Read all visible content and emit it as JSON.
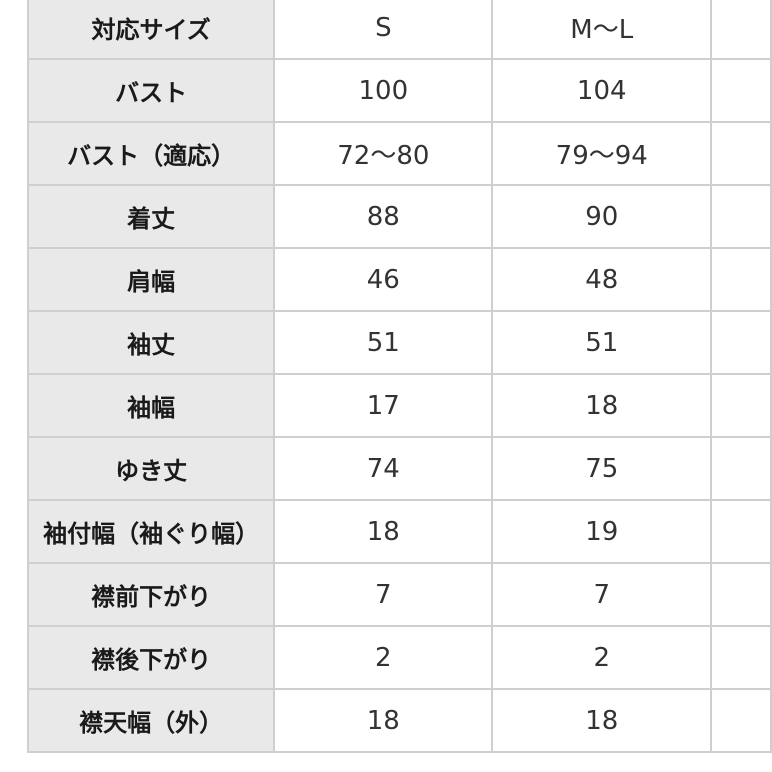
{
  "columns": [
    "対応サイズ",
    "S",
    "M〜L",
    ""
  ],
  "rows": [
    {
      "label": "バスト",
      "s": "100",
      "m": "104"
    },
    {
      "label": "バスト（適応）",
      "s": "72〜80",
      "m": "79〜94"
    },
    {
      "label": "着丈",
      "s": "88",
      "m": "90"
    },
    {
      "label": "肩幅",
      "s": "46",
      "m": "48"
    },
    {
      "label": "袖丈",
      "s": "51",
      "m": "51"
    },
    {
      "label": "袖幅",
      "s": "17",
      "m": "18"
    },
    {
      "label": "ゆき丈",
      "s": "74",
      "m": "75"
    },
    {
      "label": "袖付幅（袖ぐり幅）",
      "s": "18",
      "m": "19"
    },
    {
      "label": "襟前下がり",
      "s": "7",
      "m": "7"
    },
    {
      "label": "襟後下がり",
      "s": "2",
      "m": "2"
    },
    {
      "label": "襟天幅（外）",
      "s": "18",
      "m": "18"
    }
  ]
}
